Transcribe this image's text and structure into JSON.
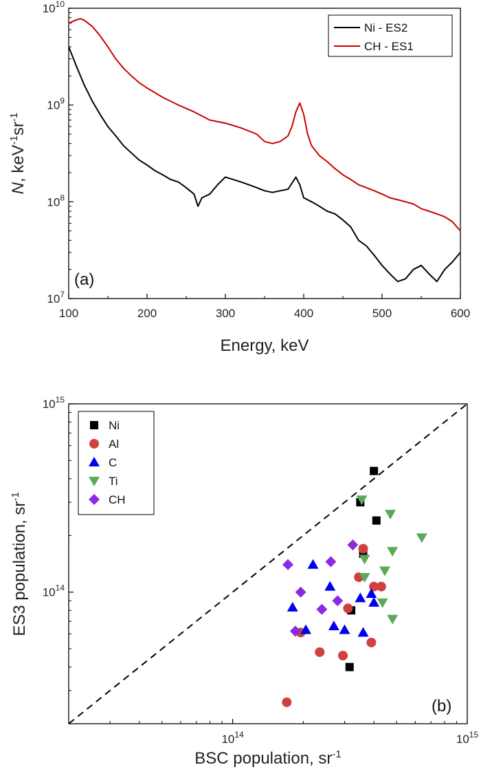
{
  "chart_data": [
    {
      "type": "line",
      "panel_label": "(a)",
      "xlabel": "Energy, keV",
      "ylabel": "N, keV⁻¹sr⁻¹",
      "ylabel_parts": {
        "italic": "N",
        "rest": ", keV",
        "sup1": "-1",
        "mid": "sr",
        "sup2": "-1"
      },
      "xlim": [
        100,
        600
      ],
      "ylim": [
        10000000,
        10000000000
      ],
      "yscale": "log",
      "x_ticks": [
        100,
        200,
        300,
        400,
        500,
        600
      ],
      "x_tick_labels": [
        "100",
        "200",
        "300",
        "400",
        "500",
        "600"
      ],
      "y_ticks": [
        10000000,
        100000000,
        1000000000,
        10000000000
      ],
      "y_tick_labels": [
        {
          "base": "10",
          "exp": "7"
        },
        {
          "base": "10",
          "exp": "8"
        },
        {
          "base": "10",
          "exp": "9"
        },
        {
          "base": "10",
          "exp": "10"
        }
      ],
      "legend_position": "top-right",
      "series": [
        {
          "name": "Ni - ES2",
          "color": "#000000",
          "x": [
            100,
            110,
            120,
            130,
            140,
            150,
            160,
            170,
            180,
            190,
            200,
            210,
            220,
            230,
            240,
            250,
            260,
            265,
            270,
            280,
            290,
            300,
            310,
            320,
            330,
            340,
            350,
            360,
            370,
            380,
            390,
            395,
            400,
            410,
            420,
            430,
            440,
            450,
            460,
            470,
            480,
            490,
            500,
            510,
            520,
            530,
            540,
            550,
            560,
            570,
            580,
            590,
            600
          ],
          "y": [
            4000000000,
            2500000000,
            1600000000,
            1100000000,
            800000000,
            600000000,
            480000000,
            380000000,
            320000000,
            270000000,
            240000000,
            210000000,
            190000000,
            170000000,
            160000000,
            140000000,
            120000000,
            90000000,
            110000000,
            120000000,
            150000000,
            180000000,
            170000000,
            160000000,
            150000000,
            140000000,
            130000000,
            125000000,
            130000000,
            135000000,
            180000000,
            150000000,
            110000000,
            100000000,
            90000000,
            80000000,
            75000000,
            65000000,
            55000000,
            40000000,
            35000000,
            28000000,
            22000000,
            18000000,
            15000000,
            16000000,
            20000000,
            22000000,
            18000000,
            15000000,
            20000000,
            24000000,
            30000000
          ]
        },
        {
          "name": "CH - ES1",
          "color": "#cc0000",
          "x": [
            100,
            105,
            110,
            115,
            120,
            130,
            140,
            150,
            160,
            170,
            180,
            190,
            200,
            220,
            240,
            260,
            280,
            300,
            320,
            340,
            350,
            360,
            370,
            380,
            385,
            390,
            395,
            400,
            405,
            410,
            420,
            430,
            440,
            450,
            460,
            470,
            480,
            490,
            500,
            510,
            520,
            530,
            540,
            550,
            560,
            570,
            580,
            590,
            600
          ],
          "y": [
            7000000000,
            7300000000,
            7600000000,
            7800000000,
            7500000000,
            6500000000,
            5200000000,
            4000000000,
            3000000000,
            2400000000,
            2000000000,
            1700000000,
            1500000000,
            1200000000,
            1000000000,
            850000000,
            700000000,
            650000000,
            580000000,
            500000000,
            420000000,
            400000000,
            420000000,
            480000000,
            600000000,
            850000000,
            1050000000,
            800000000,
            500000000,
            380000000,
            300000000,
            260000000,
            220000000,
            190000000,
            170000000,
            150000000,
            140000000,
            130000000,
            120000000,
            110000000,
            105000000,
            100000000,
            95000000,
            85000000,
            80000000,
            75000000,
            70000000,
            62000000,
            50000000
          ]
        }
      ]
    },
    {
      "type": "scatter",
      "panel_label": "(b)",
      "xlabel": "BSC population, sr⁻¹",
      "ylabel": "ES3 population, sr⁻¹",
      "xlabel_parts": {
        "text": "BSC population, sr",
        "sup": "-1"
      },
      "ylabel_parts": {
        "text": "ES3 population, sr",
        "sup": "-1"
      },
      "xscale": "log",
      "yscale": "log",
      "xlim": [
        20000000000000,
        1000000000000000
      ],
      "ylim": [
        20000000000000,
        1000000000000000
      ],
      "x_ticks": [
        100000000000000,
        1000000000000000
      ],
      "x_tick_labels": [
        {
          "base": "10",
          "exp": "14"
        },
        {
          "base": "10",
          "exp": "15"
        }
      ],
      "y_ticks": [
        100000000000000,
        1000000000000000
      ],
      "y_tick_labels": [
        {
          "base": "10",
          "exp": "14"
        },
        {
          "base": "10",
          "exp": "15"
        }
      ],
      "reference_line": "y = x",
      "legend_position": "top-left",
      "series": [
        {
          "name": "Ni",
          "marker": "square",
          "color": "#000000",
          "points": [
            [
              400000000000000.0,
              440000000000000.0
            ],
            [
              350000000000000.0,
              300000000000000.0
            ],
            [
              410000000000000.0,
              240000000000000.0
            ],
            [
              360000000000000.0,
              160000000000000.0
            ],
            [
              320000000000000.0,
              80000000000000.0
            ],
            [
              315000000000000.0,
              40000000000000.0
            ]
          ]
        },
        {
          "name": "Al",
          "marker": "circle",
          "color": "#d04040",
          "points": [
            [
              360000000000000.0,
              170000000000000.0
            ],
            [
              345000000000000.0,
              120000000000000.0
            ],
            [
              310000000000000.0,
              82000000000000.0
            ],
            [
              400000000000000.0,
              107000000000000.0
            ],
            [
              430000000000000.0,
              107000000000000.0
            ],
            [
              195000000000000.0,
              61000000000000.0
            ],
            [
              235000000000000.0,
              48000000000000.0
            ],
            [
              295000000000000.0,
              46000000000000.0
            ],
            [
              390000000000000.0,
              54000000000000.0
            ],
            [
              170000000000000.0,
              26000000000000.0
            ]
          ]
        },
        {
          "name": "C",
          "marker": "triangle-up",
          "color": "#0000ee",
          "points": [
            [
              220000000000000.0,
              140000000000000.0
            ],
            [
              260000000000000.0,
              107000000000000.0
            ],
            [
              180000000000000.0,
              83000000000000.0
            ],
            [
              205000000000000.0,
              63000000000000.0
            ],
            [
              270000000000000.0,
              66000000000000.0
            ],
            [
              300000000000000.0,
              63000000000000.0
            ],
            [
              350000000000000.0,
              93000000000000.0
            ],
            [
              390000000000000.0,
              98000000000000.0
            ],
            [
              400000000000000.0,
              88000000000000.0
            ],
            [
              360000000000000.0,
              61000000000000.0
            ]
          ]
        },
        {
          "name": "Ti",
          "marker": "triangle-down",
          "color": "#5aaa5a",
          "points": [
            [
              355000000000000.0,
              310000000000000.0
            ],
            [
              470000000000000.0,
              260000000000000.0
            ],
            [
              640000000000000.0,
              195000000000000.0
            ],
            [
              480000000000000.0,
              165000000000000.0
            ],
            [
              365000000000000.0,
              150000000000000.0
            ],
            [
              365000000000000.0,
              120000000000000.0
            ],
            [
              445000000000000.0,
              130000000000000.0
            ],
            [
              435000000000000.0,
              88000000000000.0
            ],
            [
              480000000000000.0,
              72000000000000.0
            ]
          ]
        },
        {
          "name": "CH",
          "marker": "diamond",
          "color": "#8a2be2",
          "points": [
            [
              172000000000000.0,
              140000000000000.0
            ],
            [
              262000000000000.0,
              145000000000000.0
            ],
            [
              325000000000000.0,
              178000000000000.0
            ],
            [
              195000000000000.0,
              100000000000000.0
            ],
            [
              240000000000000.0,
              81000000000000.0
            ],
            [
              280000000000000.0,
              90000000000000.0
            ],
            [
              185000000000000.0,
              62000000000000.0
            ]
          ]
        }
      ]
    }
  ]
}
